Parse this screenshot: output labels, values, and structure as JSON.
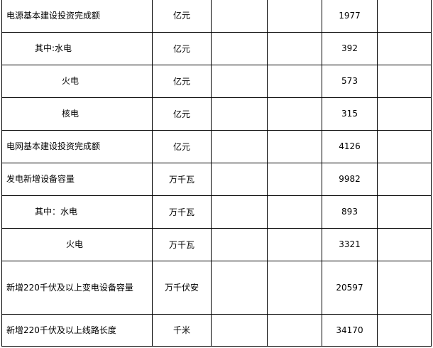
{
  "rows": [
    {
      "name": "电源基本建设投资完成额",
      "indent": 0,
      "unit": "亿元",
      "value": "1977"
    },
    {
      "name": "其中:水电",
      "indent": 40,
      "unit": "亿元",
      "value": "392"
    },
    {
      "name": "火电",
      "indent": 78,
      "unit": "亿元",
      "value": "573"
    },
    {
      "name": "核电",
      "indent": 78,
      "unit": "亿元",
      "value": "315"
    },
    {
      "name": "电网基本建设投资完成额",
      "indent": 0,
      "unit": "亿元",
      "value": "4126"
    },
    {
      "name": "发电新增设备容量",
      "indent": 0,
      "unit": "万千瓦",
      "value": "9982"
    },
    {
      "name": "其中：水电",
      "indent": 40,
      "unit": "万千瓦",
      "value": "893"
    },
    {
      "name": "火电",
      "indent": 84,
      "unit": "万千瓦",
      "value": "3321"
    },
    {
      "name": "新增220千伏及以上变电设备容量",
      "indent": 0,
      "unit": "万千伏安",
      "value": "20597"
    },
    {
      "name": "新增220千伏及以上线路长度",
      "indent": 0,
      "unit": "千米",
      "value": "34170"
    }
  ]
}
